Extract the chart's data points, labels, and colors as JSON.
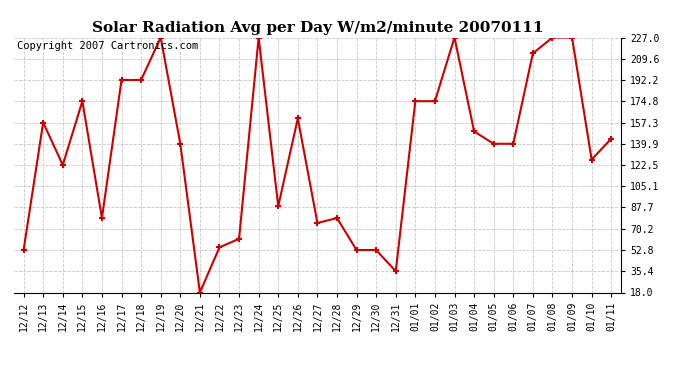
{
  "title": "Solar Radiation Avg per Day W/m2/minute 20070111",
  "copyright": "Copyright 2007 Cartronics.com",
  "labels": [
    "12/12",
    "12/13",
    "12/14",
    "12/15",
    "12/16",
    "12/17",
    "12/18",
    "12/19",
    "12/20",
    "12/21",
    "12/22",
    "12/23",
    "12/24",
    "12/25",
    "12/26",
    "12/27",
    "12/28",
    "12/29",
    "12/30",
    "12/31",
    "01/01",
    "01/02",
    "01/03",
    "01/04",
    "01/05",
    "01/06",
    "01/07",
    "01/08",
    "01/09",
    "01/10",
    "01/11"
  ],
  "values": [
    52.8,
    157.3,
    122.5,
    174.8,
    79.0,
    192.2,
    192.2,
    227.0,
    139.9,
    18.0,
    55.0,
    62.0,
    227.0,
    88.7,
    160.7,
    75.0,
    79.0,
    52.8,
    52.8,
    35.4,
    174.8,
    174.8,
    227.0,
    150.0,
    139.9,
    139.9,
    214.0,
    227.0,
    227.0,
    127.0,
    144.0
  ],
  "line_color": "#cc0000",
  "marker": "+",
  "marker_size": 5,
  "marker_lw": 1.5,
  "line_width": 1.5,
  "ylim_min": 18.0,
  "ylim_max": 227.0,
  "yticks": [
    18.0,
    35.4,
    52.8,
    70.2,
    87.7,
    105.1,
    122.5,
    139.9,
    157.3,
    174.8,
    192.2,
    209.6,
    227.0
  ],
  "background_color": "#ffffff",
  "grid_color": "#bbbbbb",
  "title_fontsize": 11,
  "axis_fontsize": 7,
  "copyright_fontsize": 7.5
}
